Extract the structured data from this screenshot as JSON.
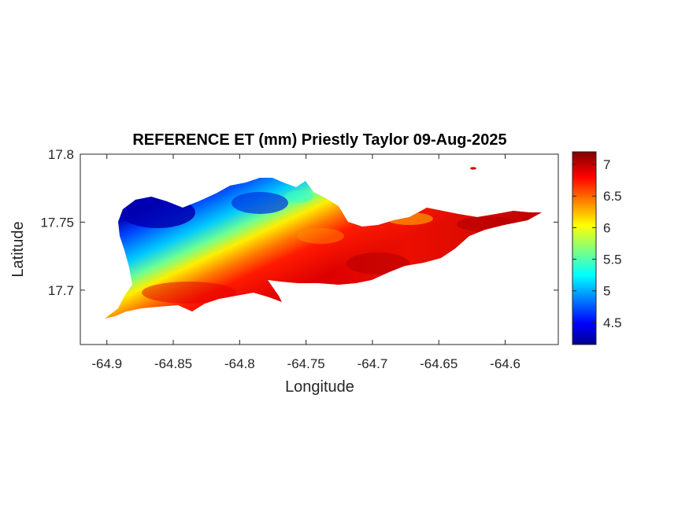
{
  "map": {
    "title": "REFERENCE ET (mm) Priestly Taylor 09-Aug-2025",
    "xlabel": "Longitude",
    "ylabel": "Latitude",
    "x_ticks": [
      -64.9,
      -64.85,
      -64.8,
      -64.75,
      -64.7,
      -64.65,
      -64.6
    ],
    "y_ticks": [
      17.7,
      17.75,
      17.8
    ],
    "xlim": [
      -64.92,
      -64.56
    ],
    "ylim": [
      17.66,
      17.8
    ],
    "colorbar": {
      "ticks": [
        4.5,
        5,
        5.5,
        6,
        6.5,
        7
      ],
      "range": [
        4.15,
        7.2
      ],
      "colormap": "jet"
    },
    "field_summary": {
      "min": 4.15,
      "max": 7.2,
      "low_region": "northwest (blue, ~4.2-5)",
      "high_region": "south and east (red, ~6.5-7.2)"
    }
  }
}
